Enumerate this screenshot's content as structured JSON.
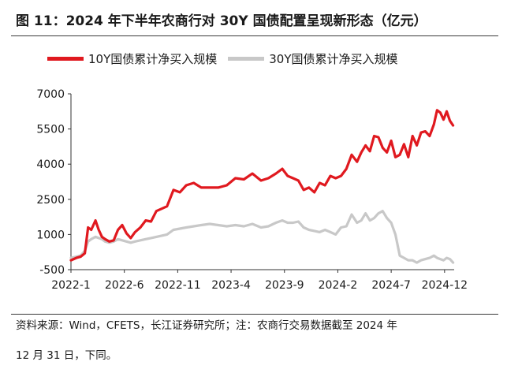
{
  "figure": {
    "title": "图 11：2024 年下半年农商行对 30Y 国债配置呈现新形态（亿元）",
    "source_line1": "资料来源：Wind，CFETS，长江证券研究所；注：农商行交易数据截至 2024 年",
    "source_line2": "12 月 31 日，下同。"
  },
  "colors": {
    "series_10y": "#e0191f",
    "series_30y": "#c8c8c8",
    "axis": "#333333"
  },
  "chart_data": {
    "type": "line",
    "title": "图 11：2024 年下半年农商行对 30Y 国债配置呈现新形态（亿元）",
    "xlabel": "",
    "ylabel": "亿元",
    "ylim": [
      -500,
      7000
    ],
    "yticks": [
      -500,
      1000,
      2500,
      4000,
      5500,
      7000
    ],
    "ytick_labels": [
      "-500",
      "1000",
      "2500",
      "4000",
      "5500",
      "7000"
    ],
    "xticks": [
      "2022-1",
      "2022-6",
      "2022-11",
      "2023-4",
      "2023-9",
      "2024-2",
      "2024-7",
      "2024-12"
    ],
    "xtick_months": [
      0,
      5,
      10,
      15,
      20,
      25,
      30,
      35
    ],
    "x_range_months": [
      0,
      35.9
    ],
    "legend": "top",
    "series": [
      {
        "name": "10Y国债累计净买入规模",
        "x": [
          0,
          0.5,
          0.9,
          1.3,
          1.6,
          1.9,
          2.3,
          2.6,
          2.9,
          3.2,
          3.6,
          4.0,
          4.4,
          4.8,
          5.2,
          5.6,
          6.0,
          6.5,
          7.0,
          7.5,
          8.0,
          8.5,
          9.0,
          9.6,
          10.2,
          10.8,
          11.5,
          12.2,
          13.0,
          13.8,
          14.6,
          15.4,
          16.2,
          17.0,
          17.8,
          18.5,
          19.2,
          19.8,
          20.3,
          20.8,
          21.3,
          21.8,
          22.3,
          22.8,
          23.3,
          23.8,
          24.3,
          24.8,
          25.3,
          25.8,
          26.3,
          26.8,
          27.2,
          27.6,
          28.0,
          28.4,
          28.8,
          29.2,
          29.6,
          30.0,
          30.4,
          30.8,
          31.2,
          31.6,
          32.0,
          32.4,
          32.8,
          33.2,
          33.6,
          34.0,
          34.3,
          34.6,
          34.9,
          35.2,
          35.5,
          35.8
        ],
        "values": [
          -100,
          0,
          50,
          200,
          1300,
          1200,
          1600,
          1200,
          900,
          800,
          700,
          750,
          1200,
          1400,
          1050,
          850,
          1100,
          1300,
          1600,
          1550,
          2000,
          2100,
          2200,
          2900,
          2800,
          3100,
          3200,
          3000,
          3000,
          3000,
          3100,
          3400,
          3350,
          3600,
          3300,
          3400,
          3600,
          3800,
          3500,
          3400,
          3300,
          2900,
          3000,
          2800,
          3200,
          3100,
          3500,
          3400,
          3500,
          3800,
          4400,
          4100,
          4500,
          4800,
          4550,
          5200,
          5150,
          4700,
          4500,
          5000,
          4300,
          4400,
          4850,
          4300,
          5200,
          4800,
          5350,
          5400,
          5200,
          5700,
          6300,
          6200,
          5900,
          6250,
          5850,
          5650
        ]
      },
      {
        "name": "30Y国债累计净买入规模",
        "x": [
          0,
          0.5,
          0.9,
          1.3,
          1.6,
          1.9,
          2.3,
          2.6,
          2.9,
          3.2,
          3.6,
          4.0,
          4.4,
          4.8,
          5.2,
          5.6,
          6.0,
          6.5,
          7.0,
          7.5,
          8.0,
          8.5,
          9.0,
          9.6,
          10.2,
          10.8,
          11.5,
          12.2,
          13.0,
          13.8,
          14.6,
          15.4,
          16.2,
          17.0,
          17.8,
          18.5,
          19.2,
          19.8,
          20.3,
          20.8,
          21.3,
          21.8,
          22.3,
          22.8,
          23.3,
          23.8,
          24.3,
          24.8,
          25.3,
          25.8,
          26.3,
          26.8,
          27.2,
          27.6,
          28.0,
          28.4,
          28.8,
          29.2,
          29.6,
          30.0,
          30.4,
          30.8,
          31.2,
          31.6,
          32.0,
          32.4,
          32.8,
          33.2,
          33.6,
          34.0,
          34.3,
          34.6,
          34.9,
          35.2,
          35.5,
          35.8
        ],
        "values": [
          0,
          50,
          100,
          300,
          700,
          800,
          900,
          850,
          800,
          700,
          650,
          700,
          800,
          750,
          700,
          650,
          700,
          750,
          800,
          850,
          900,
          950,
          1000,
          1200,
          1250,
          1300,
          1350,
          1400,
          1450,
          1400,
          1350,
          1400,
          1350,
          1450,
          1300,
          1350,
          1500,
          1600,
          1500,
          1500,
          1550,
          1300,
          1200,
          1150,
          1100,
          1200,
          1100,
          1000,
          1300,
          1350,
          1850,
          1500,
          1600,
          1900,
          1600,
          1700,
          1900,
          2000,
          1700,
          1500,
          1000,
          100,
          0,
          -100,
          -100,
          -200,
          -100,
          -50,
          0,
          100,
          0,
          -50,
          -100,
          0,
          -50,
          -200
        ]
      }
    ]
  }
}
